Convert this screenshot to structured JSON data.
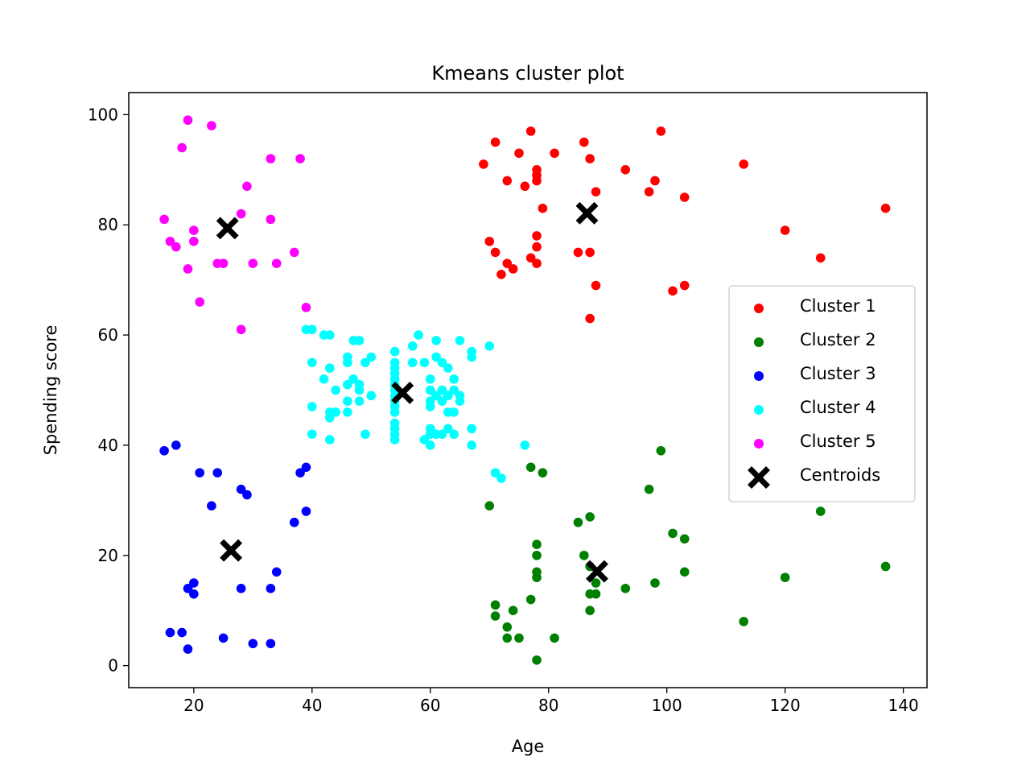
{
  "chart_data": {
    "type": "scatter",
    "title": "Kmeans cluster plot",
    "xlabel": "Age",
    "ylabel": "Spending score",
    "xlim": [
      9,
      144
    ],
    "ylim": [
      -4,
      104
    ],
    "xticks": [
      20,
      40,
      60,
      80,
      100,
      120,
      140
    ],
    "yticks": [
      0,
      20,
      40,
      60,
      80,
      100
    ],
    "grid": false,
    "legend_position": "center-right",
    "series": [
      {
        "name": "Cluster 1",
        "color": "#ff0000",
        "marker": "circle",
        "points": [
          [
            71,
            95
          ],
          [
            77,
            97
          ],
          [
            86,
            95
          ],
          [
            99,
            97
          ],
          [
            69,
            91
          ],
          [
            75,
            93
          ],
          [
            81,
            93
          ],
          [
            87,
            92
          ],
          [
            113,
            91
          ],
          [
            78,
            90
          ],
          [
            78,
            89
          ],
          [
            93,
            90
          ],
          [
            78,
            88
          ],
          [
            73,
            88
          ],
          [
            76,
            87
          ],
          [
            98,
            88
          ],
          [
            88,
            86
          ],
          [
            97,
            86
          ],
          [
            103,
            85
          ],
          [
            79,
            83
          ],
          [
            137,
            83
          ],
          [
            120,
            79
          ],
          [
            70,
            77
          ],
          [
            78,
            78
          ],
          [
            78,
            76
          ],
          [
            71,
            75
          ],
          [
            85,
            75
          ],
          [
            87,
            75
          ],
          [
            126,
            74
          ],
          [
            77,
            74
          ],
          [
            73,
            73
          ],
          [
            78,
            73
          ],
          [
            74,
            72
          ],
          [
            72,
            71
          ],
          [
            88,
            69
          ],
          [
            103,
            69
          ],
          [
            101,
            68
          ],
          [
            87,
            63
          ]
        ]
      },
      {
        "name": "Cluster 2",
        "color": "#008000",
        "marker": "circle",
        "points": [
          [
            99,
            39
          ],
          [
            77,
            36
          ],
          [
            79,
            35
          ],
          [
            97,
            32
          ],
          [
            70,
            29
          ],
          [
            126,
            28
          ],
          [
            87,
            27
          ],
          [
            85,
            26
          ],
          [
            101,
            24
          ],
          [
            103,
            23
          ],
          [
            78,
            22
          ],
          [
            78,
            20
          ],
          [
            86,
            20
          ],
          [
            87,
            18
          ],
          [
            137,
            18
          ],
          [
            78,
            17
          ],
          [
            103,
            17
          ],
          [
            78,
            16
          ],
          [
            120,
            16
          ],
          [
            98,
            15
          ],
          [
            88,
            15
          ],
          [
            93,
            14
          ],
          [
            87,
            13
          ],
          [
            88,
            13
          ],
          [
            77,
            12
          ],
          [
            71,
            11
          ],
          [
            74,
            10
          ],
          [
            87,
            10
          ],
          [
            71,
            9
          ],
          [
            113,
            8
          ],
          [
            73,
            7
          ],
          [
            73,
            5
          ],
          [
            75,
            5
          ],
          [
            81,
            5
          ],
          [
            78,
            1
          ]
        ]
      },
      {
        "name": "Cluster 3",
        "color": "#0000ff",
        "marker": "circle",
        "points": [
          [
            17,
            40
          ],
          [
            15,
            39
          ],
          [
            39,
            36
          ],
          [
            21,
            35
          ],
          [
            24,
            35
          ],
          [
            38,
            35
          ],
          [
            28,
            32
          ],
          [
            29,
            31
          ],
          [
            23,
            29
          ],
          [
            39,
            28
          ],
          [
            37,
            26
          ],
          [
            34,
            17
          ],
          [
            20,
            15
          ],
          [
            19,
            14
          ],
          [
            28,
            14
          ],
          [
            33,
            14
          ],
          [
            20,
            13
          ],
          [
            16,
            6
          ],
          [
            18,
            6
          ],
          [
            25,
            5
          ],
          [
            30,
            4
          ],
          [
            33,
            4
          ],
          [
            19,
            3
          ]
        ]
      },
      {
        "name": "Cluster 4",
        "color": "#00ffff",
        "marker": "circle",
        "points": [
          [
            39,
            61
          ],
          [
            40,
            61
          ],
          [
            58,
            60
          ],
          [
            42,
            60
          ],
          [
            43,
            60
          ],
          [
            47,
            59
          ],
          [
            48,
            59
          ],
          [
            61,
            59
          ],
          [
            65,
            59
          ],
          [
            57,
            58
          ],
          [
            70,
            58
          ],
          [
            54,
            57
          ],
          [
            67,
            57
          ],
          [
            46,
            56
          ],
          [
            50,
            56
          ],
          [
            61,
            56
          ],
          [
            67,
            56
          ],
          [
            40,
            55
          ],
          [
            46,
            55
          ],
          [
            49,
            55
          ],
          [
            54,
            55
          ],
          [
            57,
            55
          ],
          [
            59,
            55
          ],
          [
            62,
            55
          ],
          [
            43,
            54
          ],
          [
            54,
            54
          ],
          [
            63,
            54
          ],
          [
            54,
            53
          ],
          [
            42,
            52
          ],
          [
            47,
            52
          ],
          [
            54,
            52
          ],
          [
            60,
            52
          ],
          [
            64,
            52
          ],
          [
            48,
            51
          ],
          [
            46,
            51
          ],
          [
            54,
            51
          ],
          [
            44,
            50
          ],
          [
            48,
            50
          ],
          [
            54,
            50
          ],
          [
            60,
            50
          ],
          [
            62,
            50
          ],
          [
            64,
            50
          ],
          [
            50,
            49
          ],
          [
            54,
            49
          ],
          [
            61,
            49
          ],
          [
            63,
            49
          ],
          [
            65,
            49
          ],
          [
            46,
            48
          ],
          [
            48,
            48
          ],
          [
            54,
            48
          ],
          [
            60,
            48
          ],
          [
            62,
            48
          ],
          [
            65,
            48
          ],
          [
            40,
            47
          ],
          [
            54,
            47
          ],
          [
            60,
            47
          ],
          [
            43,
            46
          ],
          [
            44,
            46
          ],
          [
            46,
            46
          ],
          [
            54,
            46
          ],
          [
            63,
            46
          ],
          [
            64,
            46
          ],
          [
            43,
            45
          ],
          [
            54,
            44
          ],
          [
            54,
            43
          ],
          [
            60,
            43
          ],
          [
            63,
            43
          ],
          [
            67,
            43
          ],
          [
            40,
            42
          ],
          [
            49,
            42
          ],
          [
            54,
            42
          ],
          [
            60,
            42
          ],
          [
            61,
            42
          ],
          [
            62,
            42
          ],
          [
            64,
            42
          ],
          [
            43,
            41
          ],
          [
            54,
            41
          ],
          [
            59,
            41
          ],
          [
            60,
            40
          ],
          [
            67,
            40
          ],
          [
            76,
            40
          ],
          [
            71,
            35
          ],
          [
            72,
            34
          ]
        ]
      },
      {
        "name": "Cluster 5",
        "color": "#ff00ff",
        "marker": "circle",
        "points": [
          [
            19,
            99
          ],
          [
            23,
            98
          ],
          [
            18,
            94
          ],
          [
            33,
            92
          ],
          [
            38,
            92
          ],
          [
            29,
            87
          ],
          [
            28,
            82
          ],
          [
            15,
            81
          ],
          [
            33,
            81
          ],
          [
            20,
            79
          ],
          [
            16,
            77
          ],
          [
            20,
            77
          ],
          [
            17,
            76
          ],
          [
            37,
            75
          ],
          [
            24,
            73
          ],
          [
            25,
            73
          ],
          [
            30,
            73
          ],
          [
            34,
            73
          ],
          [
            19,
            72
          ],
          [
            21,
            66
          ],
          [
            39,
            65
          ],
          [
            28,
            61
          ]
        ]
      },
      {
        "name": "Centroids",
        "color": "#000000",
        "marker": "x",
        "points": [
          [
            86.5,
            82.1
          ],
          [
            88.2,
            17.1
          ],
          [
            26.3,
            20.9
          ],
          [
            55.3,
            49.5
          ],
          [
            25.7,
            79.4
          ]
        ]
      }
    ]
  }
}
